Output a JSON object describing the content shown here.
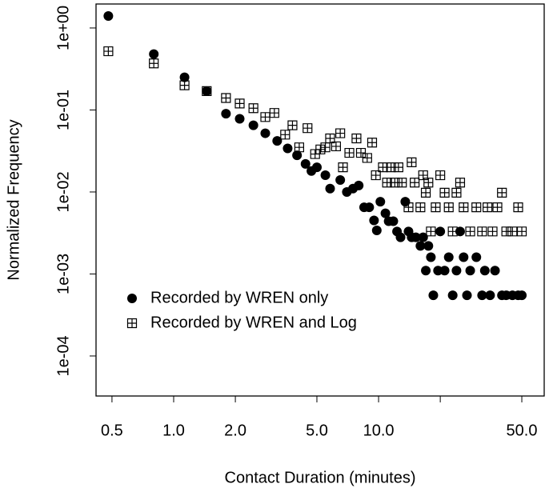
{
  "chart_data": {
    "type": "scatter",
    "x_label": "Contact Duration (minutes)",
    "y_label": "Normalized Frequency",
    "log_x": true,
    "log_y": true,
    "xlim": [
      0.418,
      64.3
    ],
    "ylim": [
      3.25e-05,
      1.96
    ],
    "xticks": [
      0.5,
      {
        "value": 1,
        "label": "1.0"
      },
      {
        "value": 2,
        "label": "2.0"
      },
      {
        "value": 5,
        "label": "5.0"
      },
      {
        "value": 10,
        "label": "10.0"
      },
      {
        "value": 50,
        "label": "50.0"
      }
    ],
    "xticks_unlabeled": [
      20
    ],
    "yticks": [
      {
        "value": 1,
        "label": "1e+00"
      },
      {
        "value": 0.1,
        "label": "1e-01"
      },
      {
        "value": 0.01,
        "label": "1e-02"
      },
      {
        "value": 0.001,
        "label": "1e-03"
      },
      {
        "value": 0.0001,
        "label": "1e-04"
      }
    ],
    "legend": "bottom-left",
    "series": [
      {
        "name": "Recorded by WREN only",
        "marker": "circle",
        "color": "#000000",
        "x": [
          0.48,
          0.8,
          1.13,
          1.45,
          1.8,
          2.1,
          2.45,
          2.8,
          3.2,
          3.6,
          4,
          4.4,
          4.7,
          5,
          5.5,
          5.8,
          6.5,
          7,
          7.5,
          8,
          8.5,
          9,
          9.5,
          9.8,
          10.2,
          10.8,
          11.2,
          11.8,
          12.3,
          12.8,
          13.5,
          14,
          14.5,
          15.2,
          16,
          16.5,
          17,
          17.5,
          18,
          18.5,
          19.5,
          20,
          21,
          22,
          23,
          24,
          25,
          26,
          27,
          28,
          30,
          32,
          33,
          35,
          37,
          40,
          42,
          45,
          48,
          50
        ],
        "values": [
          1.4,
          0.48,
          0.25,
          0.17,
          0.09,
          0.078,
          0.065,
          0.052,
          0.042,
          0.034,
          0.028,
          0.022,
          0.018,
          0.02,
          0.016,
          0.011,
          0.014,
          0.01,
          0.011,
          0.012,
          0.0065,
          0.0065,
          0.0045,
          0.0034,
          0.0076,
          0.0055,
          0.0044,
          0.0044,
          0.0033,
          0.0028,
          0.0076,
          0.0033,
          0.0028,
          0.0028,
          0.0022,
          0.0028,
          0.0011,
          0.0022,
          0.0016,
          0.00055,
          0.0011,
          0.0033,
          0.0011,
          0.0016,
          0.00055,
          0.0011,
          0.0033,
          0.0016,
          0.00055,
          0.0011,
          0.0016,
          0.00055,
          0.0011,
          0.00055,
          0.0011,
          0.00055,
          0.00055,
          0.00055,
          0.00055,
          0.00055
        ]
      },
      {
        "name": "Recorded by WREN and Log",
        "marker": "square",
        "color": "#000000",
        "x": [
          0.48,
          0.8,
          1.13,
          1.45,
          1.8,
          2.1,
          2.45,
          2.8,
          3.1,
          3.5,
          3.8,
          4.1,
          4.5,
          4.9,
          5.2,
          5.5,
          5.8,
          6.2,
          6.5,
          6.7,
          7.2,
          7.8,
          8.2,
          8.8,
          9.3,
          9.7,
          10.5,
          11,
          11.5,
          12,
          12.5,
          13,
          14,
          14.5,
          15,
          16,
          16.5,
          17,
          17.5,
          18,
          19,
          20,
          21,
          22,
          23,
          24,
          25,
          26,
          28,
          30,
          32,
          34,
          36,
          38,
          40,
          42,
          45,
          48,
          50
        ],
        "values": [
          0.52,
          0.37,
          0.2,
          0.17,
          0.14,
          0.12,
          0.105,
          0.082,
          0.092,
          0.05,
          0.065,
          0.035,
          0.06,
          0.029,
          0.033,
          0.035,
          0.045,
          0.036,
          0.052,
          0.02,
          0.03,
          0.045,
          0.03,
          0.026,
          0.04,
          0.016,
          0.02,
          0.013,
          0.02,
          0.013,
          0.02,
          0.013,
          0.0065,
          0.023,
          0.013,
          0.0065,
          0.016,
          0.0098,
          0.013,
          0.0033,
          0.0065,
          0.016,
          0.0098,
          0.0065,
          0.0033,
          0.0098,
          0.013,
          0.0065,
          0.0033,
          0.0065,
          0.0033,
          0.0065,
          0.0033,
          0.0065,
          0.0098,
          0.0033,
          0.0033,
          0.0065,
          0.0033
        ]
      }
    ]
  }
}
